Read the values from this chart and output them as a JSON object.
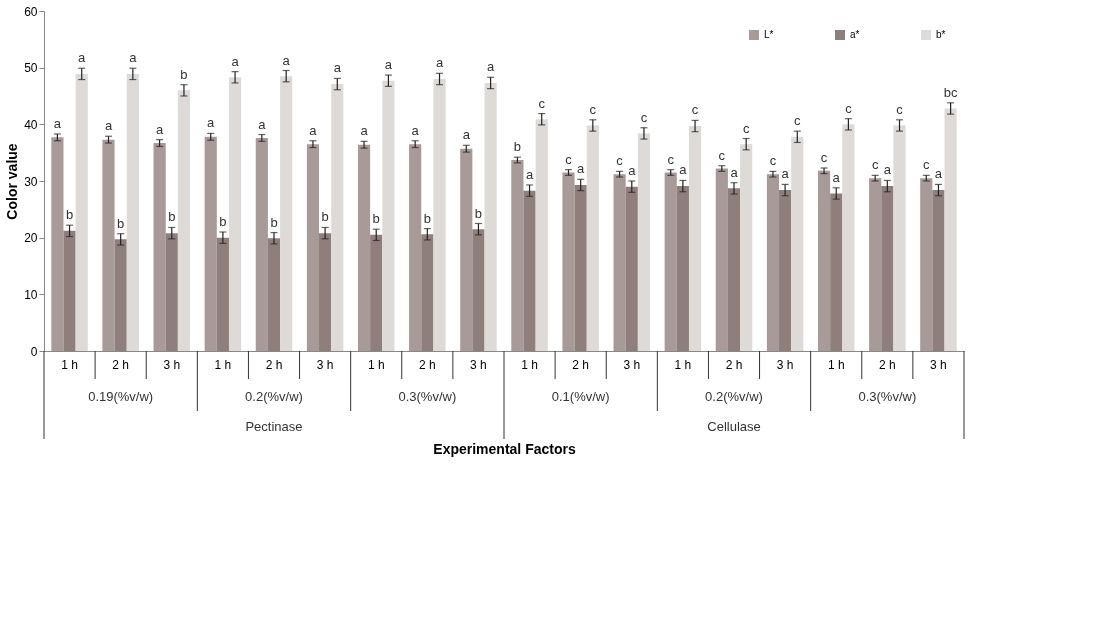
{
  "chart_data": {
    "type": "bar",
    "xlabel": "Experimental Factors",
    "ylabel": "Color value",
    "categories": [
      "1 h",
      "2 h",
      "3 h",
      "1 h",
      "2 h",
      "3 h",
      "1 h",
      "2 h",
      "3 h",
      "1 h",
      "2 h",
      "3 h",
      "1 h",
      "2 h",
      "3 h",
      "1 h",
      "2 h",
      "3 h"
    ],
    "series": [
      {
        "name": "L*",
        "color": "#a89a98",
        "values": [
          37.7,
          37.3,
          36.7,
          37.8,
          37.6,
          36.5,
          36.4,
          36.5,
          35.7,
          33.7,
          31.5,
          31.2,
          31.5,
          32.2,
          31.2,
          31.8,
          30.5,
          30.5
        ],
        "errors": [
          0.6,
          0.6,
          0.6,
          0.6,
          0.6,
          0.6,
          0.6,
          0.6,
          0.6,
          0.5,
          0.5,
          0.5,
          0.5,
          0.5,
          0.5,
          0.5,
          0.5,
          0.5
        ],
        "value_labels": [
          "a",
          "a",
          "a",
          "a",
          "a",
          "a",
          "a",
          "a",
          "a",
          "b",
          "c",
          "c",
          "c",
          "c",
          "c",
          "c",
          "c",
          "c"
        ]
      },
      {
        "name": "a*",
        "color": "#8f7f7c",
        "values": [
          21.2,
          19.7,
          20.8,
          20.0,
          19.9,
          20.8,
          20.5,
          20.6,
          21.5,
          28.3,
          29.3,
          29.0,
          29.1,
          28.7,
          28.4,
          27.8,
          29.1,
          28.4
        ],
        "errors": [
          1,
          1,
          1,
          1,
          1,
          1,
          1,
          1,
          1,
          1,
          1,
          1,
          1,
          1,
          1,
          1,
          1,
          1
        ],
        "value_labels": [
          "b",
          "b",
          "b",
          "b",
          "b",
          "b",
          "b",
          "b",
          "b",
          "a",
          "a",
          "a",
          "a",
          "a",
          "a",
          "a",
          "a",
          "a"
        ]
      },
      {
        "name": "b*",
        "color": "#dedad8",
        "values": [
          48.9,
          48.9,
          46.0,
          48.3,
          48.5,
          47.1,
          47.7,
          48.0,
          47.3,
          40.9,
          39.8,
          38.4,
          39.7,
          36.5,
          37.8,
          40.0,
          39.8,
          42.8
        ],
        "errors": [
          1,
          1,
          1,
          1,
          1,
          1,
          1,
          1,
          1,
          1,
          1,
          1,
          1,
          1,
          1,
          1,
          1,
          1
        ],
        "value_labels": [
          "a",
          "a",
          "b",
          "a",
          "a",
          "a",
          "a",
          "a",
          "a",
          "c",
          "c",
          "c",
          "c",
          "c",
          "c",
          "c",
          "c",
          "bc"
        ]
      }
    ],
    "ylim": [
      0,
      60
    ],
    "yticks": [
      0,
      10,
      20,
      30,
      40,
      50,
      60
    ],
    "grid": false,
    "legend": "top right",
    "annotations": [
      "0.19(%v/w)",
      "0.2(%v/w)",
      "0.3(%v/w)",
      "0.1(%v/w)",
      "0.2(%v/w)",
      "0.3(%v/w)",
      "Pectinase",
      "Cellulase"
    ]
  }
}
